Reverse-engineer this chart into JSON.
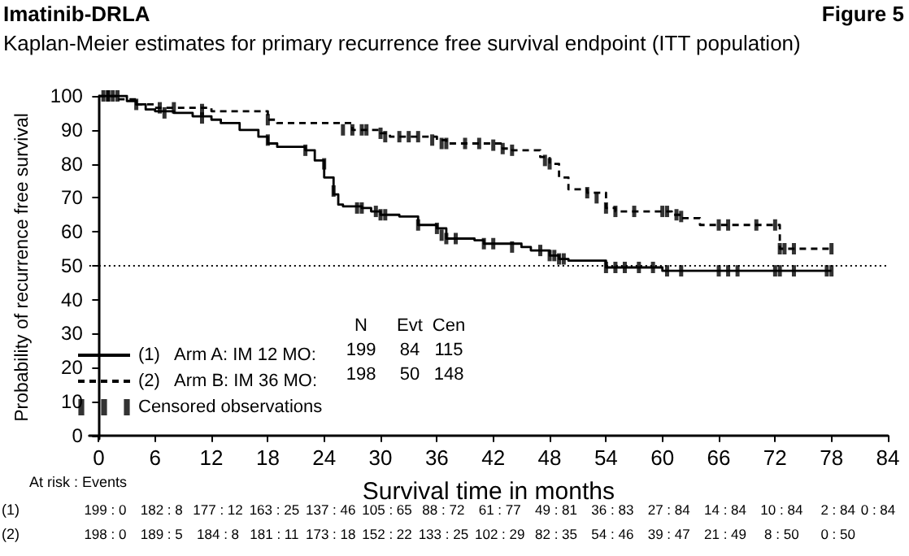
{
  "chart_data": {
    "type": "step",
    "title": "Imatinib-DRLA",
    "subtitle": "Kaplan-Meier estimates for primary recurrence free survival endpoint (ITT population)",
    "xlabel": "Survival time in months",
    "ylabel": "Probability of recurrence free survival",
    "xlim": [
      -1,
      84
    ],
    "xticks": [
      0,
      6,
      12,
      18,
      24,
      30,
      36,
      42,
      48,
      54,
      60,
      66,
      72,
      78,
      84
    ],
    "ylim": [
      -1,
      100
    ],
    "yticks": [
      0,
      10,
      20,
      30,
      40,
      50,
      60,
      70,
      80,
      90,
      100
    ],
    "grid": false,
    "legend": "bottom left",
    "marker": "none",
    "ref_lines": [
      {
        "axis": "y",
        "value": 50,
        "label": null,
        "line_style": "dotted",
        "color": "#000000"
      }
    ],
    "series": [
      {
        "name": "(1)   Arm A: IM 12 MO:",
        "color": "#000000",
        "line_style": "solid",
        "x": [
          0,
          2,
          3,
          4,
          5,
          6,
          8,
          10,
          12,
          13,
          15,
          17,
          18,
          19,
          22,
          23,
          24,
          25,
          25.5,
          26,
          28,
          29,
          30,
          32,
          34,
          36,
          37,
          40,
          41,
          45,
          46,
          48,
          49,
          50,
          54,
          60,
          78
        ],
        "values": [
          100,
          100,
          98.5,
          97.5,
          96,
          95.5,
          95,
          94,
          93,
          92,
          90,
          88,
          86,
          85,
          84,
          81,
          76,
          71,
          68,
          67.5,
          67,
          66,
          65,
          64.5,
          62,
          61,
          58,
          57.5,
          56.5,
          55.5,
          54.5,
          53,
          52,
          51.5,
          49.5,
          48.5,
          48.5
        ]
      },
      {
        "name": "(2)   Arm B: IM 36 MO:",
        "color": "#000000",
        "line_style": "dashed",
        "x": [
          0,
          2,
          4,
          6,
          12,
          18,
          19,
          27,
          30,
          31,
          36,
          37,
          43,
          44,
          47,
          48,
          49,
          50,
          52,
          54,
          55,
          61,
          62,
          64,
          72.5,
          78
        ],
        "values": [
          100,
          99,
          97.5,
          96.5,
          95.5,
          93,
          92,
          90,
          89,
          88,
          87,
          86,
          84.5,
          84,
          82,
          80,
          76,
          72.5,
          71.5,
          67,
          66,
          65,
          64,
          62,
          55,
          55
        ]
      },
      {
        "name": "Censored observations",
        "type": "scatter",
        "color": "#000000",
        "marker": "square",
        "x": [
          1,
          1.5,
          2,
          4,
          7,
          11,
          18,
          22,
          24,
          25,
          27.5,
          28,
          29.5,
          30,
          30.5,
          34,
          36,
          36.5,
          37,
          38,
          41,
          42,
          44,
          47,
          48,
          48.5,
          49,
          49.5,
          54,
          55,
          56,
          57.5,
          59,
          60.5,
          62,
          66,
          67,
          68,
          72,
          72.5,
          74,
          77.5,
          78,
          0.5,
          1,
          6.5,
          8,
          11,
          18,
          26,
          27,
          28,
          28.5,
          30,
          30.5,
          32,
          33,
          34,
          35.5,
          36.5,
          37,
          39,
          40.5,
          42,
          43,
          44,
          47.5,
          48,
          52,
          53,
          54,
          55,
          57,
          60,
          60.5,
          61.5,
          62,
          66,
          67,
          70,
          72,
          72.5,
          73,
          74,
          78
        ],
        "values": [
          100,
          100,
          100,
          97.5,
          95,
          93.5,
          87,
          84,
          80,
          72,
          67,
          67,
          66,
          65,
          65,
          62,
          61,
          59,
          58,
          58,
          56.5,
          56.5,
          55.5,
          54.5,
          53,
          53,
          52,
          52,
          49.5,
          49.5,
          49.5,
          49.5,
          49.5,
          48.5,
          48.5,
          48.5,
          48.5,
          48.5,
          48.5,
          48.5,
          48.5,
          48.5,
          48.5,
          100,
          100,
          96.5,
          96.5,
          96,
          93,
          90,
          90,
          90,
          90,
          89,
          88,
          88,
          88,
          88,
          87,
          86,
          86,
          86,
          86,
          85.5,
          84.5,
          84,
          81,
          80,
          71.5,
          70,
          67,
          66,
          66,
          66,
          66,
          65,
          64.5,
          62,
          62,
          62,
          62,
          55,
          55,
          55,
          55
        ]
      }
    ],
    "annotations": [
      "Figure 5",
      "N",
      "Evt",
      "Cen",
      "199",
      "84",
      "115",
      "198",
      "50",
      "148",
      "At risk : Events",
      "(1)",
      "199 : 0",
      "182 : 8",
      "177 : 12",
      "163 : 25",
      "137 : 46",
      "105 : 65",
      "88 : 72",
      "61 : 77",
      "49 : 81",
      "36 : 83",
      "27 : 84",
      "14 : 84",
      "10 : 84",
      "2 : 84",
      "0 : 84",
      "(2)",
      "198 : 0",
      "189 : 5",
      "184 : 8",
      "181 : 11",
      "173 : 18",
      "152 : 22",
      "133 : 25",
      "102 : 29",
      "82 : 35",
      "54 : 46",
      "39 : 47",
      "21 : 49",
      "8 : 50",
      "0 : 50"
    ]
  }
}
